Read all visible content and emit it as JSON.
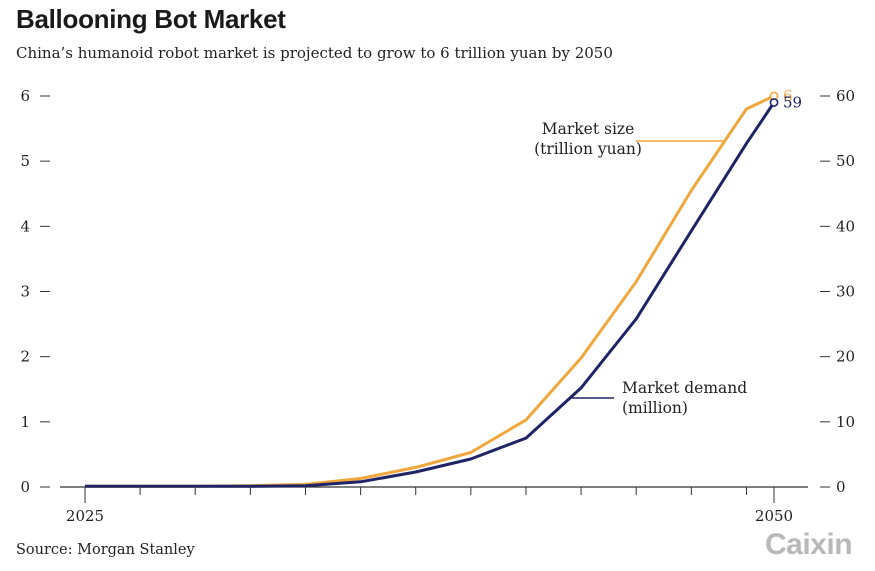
{
  "title": "Ballooning Bot Market",
  "subtitle": "China’s humanoid robot market is projected to grow to 6 trillion yuan by 2050",
  "source": "Source: Morgan Stanley",
  "logo": "Caixin",
  "colors": {
    "market_size": "#f0a73d",
    "market_demand": "#1f2466",
    "axis": "#333333"
  },
  "chart_data": {
    "type": "line",
    "xlim": [
      2025,
      2050
    ],
    "x_tick_labels": [
      "2025",
      "2050"
    ],
    "left_axis": {
      "ylim": [
        0,
        6
      ],
      "ticks": [
        "0",
        "1",
        "2",
        "3",
        "4",
        "5",
        "6"
      ]
    },
    "right_axis": {
      "ylim": [
        0,
        60
      ],
      "ticks": [
        "0",
        "10",
        "20",
        "30",
        "40",
        "50",
        "60"
      ]
    },
    "series": [
      {
        "name": "Market size\n(trillion yuan)",
        "axis": "left",
        "x": [
          2025,
          2027,
          2029,
          2031,
          2033,
          2035,
          2037,
          2039,
          2041,
          2043,
          2045,
          2047,
          2049,
          2050
        ],
        "values": [
          0.01,
          0.01,
          0.01,
          0.02,
          0.04,
          0.13,
          0.3,
          0.53,
          1.03,
          1.98,
          3.15,
          4.55,
          5.8,
          6.0
        ],
        "end_label": "6"
      },
      {
        "name": "Market demand\n(million)",
        "axis": "right",
        "x": [
          2025,
          2027,
          2029,
          2031,
          2033,
          2035,
          2037,
          2039,
          2041,
          2043,
          2045,
          2047,
          2049,
          2050
        ],
        "values": [
          0.1,
          0.1,
          0.1,
          0.1,
          0.2,
          0.8,
          2.3,
          4.3,
          7.5,
          15.2,
          25.8,
          39.3,
          52.7,
          59.0
        ],
        "end_label": "59"
      }
    ]
  }
}
